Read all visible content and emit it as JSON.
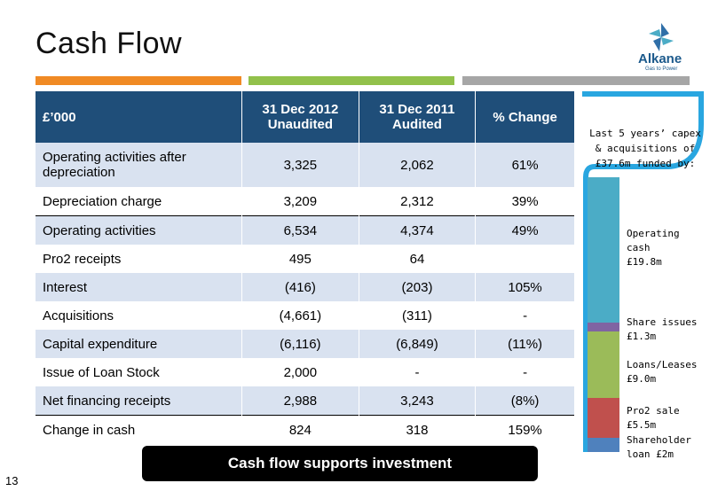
{
  "title": "Cash Flow",
  "page_number": "13",
  "logo": {
    "name": "Alkane",
    "tagline": "Gas to Power"
  },
  "colors": {
    "orange": "#f08a24",
    "green": "#92c14b",
    "grey": "#a6a6a6",
    "header": "#1f4e79"
  },
  "table": {
    "headers": [
      "£’000",
      "31 Dec 2012 Unaudited",
      "31 Dec 2011 Audited",
      "% Change"
    ],
    "rows": [
      [
        "Operating activities after depreciation",
        "3,325",
        "2,062",
        "61%"
      ],
      [
        "Depreciation charge",
        "3,209",
        "2,312",
        "39%"
      ],
      [
        "Operating activities",
        "6,534",
        "4,374",
        "49%"
      ],
      [
        "Pro2 receipts",
        "495",
        "64",
        ""
      ],
      [
        "Interest",
        "(416)",
        "(203)",
        "105%"
      ],
      [
        "Acquisitions",
        "(4,661)",
        "(311)",
        "-"
      ],
      [
        "Capital expenditure",
        "(6,116)",
        "(6,849)",
        "(11%)"
      ],
      [
        "Issue of Loan Stock",
        "2,000",
        "-",
        "-"
      ],
      [
        "Net financing receipts",
        "2,988",
        "3,243",
        "(8%)"
      ],
      [
        "Change in cash",
        "824",
        "318",
        "159%"
      ]
    ]
  },
  "banner": "Cash flow supports investment",
  "funding": {
    "title": "Last 5 years’ capex & acquisitions of £37.6m funded by:",
    "segments": [
      {
        "label": "Operating cash £19.8m",
        "value": 19.8,
        "color": "#4bacc6"
      },
      {
        "label": "Share issues £1.3m",
        "value": 1.3,
        "color": "#8064a2"
      },
      {
        "label": "Loans/Leases £9.0m",
        "value": 9.0,
        "color": "#9bbb59"
      },
      {
        "label": "Pro2 sale £5.5m",
        "value": 5.5,
        "color": "#c0504d"
      },
      {
        "label": "Shareholder loan £2m",
        "value": 2.0,
        "color": "#4f81bd"
      }
    ]
  }
}
